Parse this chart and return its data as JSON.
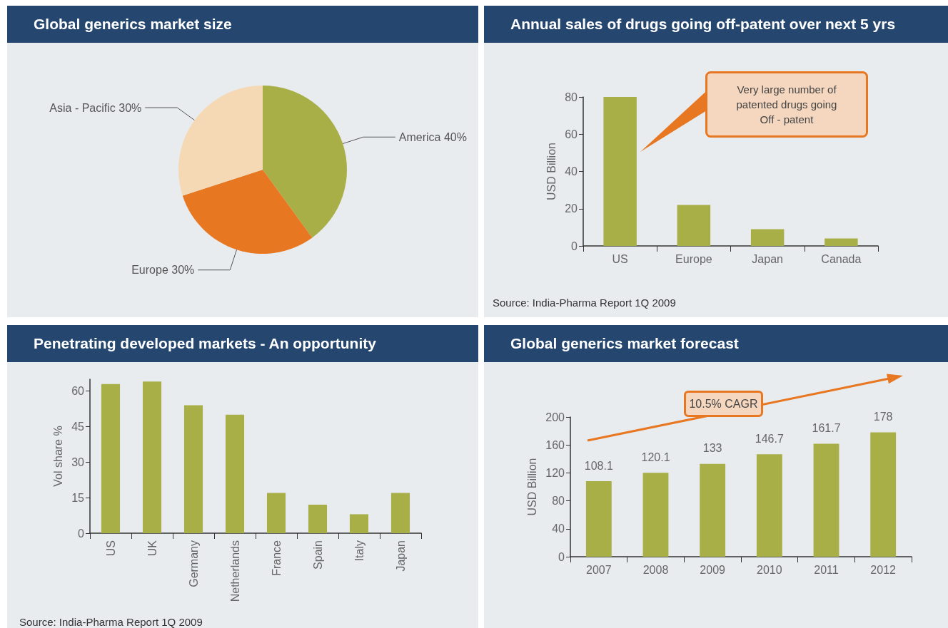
{
  "chart_data": [
    {
      "type": "pie",
      "title": "Global generics market size",
      "categories": [
        "America",
        "Europe",
        "Asia - Pacific"
      ],
      "values": [
        40,
        30,
        30
      ],
      "value_labels": [
        "40%",
        "30%",
        "30%"
      ],
      "colors": [
        "#a9af47",
        "#e87722",
        "#f5d9b5"
      ],
      "legend": false
    },
    {
      "type": "bar",
      "title": "Annual sales of drugs going off-patent over next 5 yrs",
      "ylabel": "USD Billion",
      "categories": [
        "US",
        "Europe",
        "Japan",
        "Canada"
      ],
      "values": [
        80,
        22,
        9,
        4
      ],
      "color": "#a9af47",
      "ylim": [
        0,
        80
      ],
      "yticks": [
        0,
        20,
        40,
        60,
        80
      ],
      "grid": false,
      "legend": false,
      "annotations": [
        "Very large number of patented drugs going Off - patent",
        "Source: India-Pharma Report 1Q 2009"
      ]
    },
    {
      "type": "bar",
      "title": "Penetrating developed markets - An opportunity",
      "ylabel": "Vol share %",
      "categories": [
        "US",
        "UK",
        "Germany",
        "Netherlands",
        "France",
        "Spain",
        "Italy",
        "Japan"
      ],
      "values": [
        63,
        64,
        54,
        50,
        17,
        12,
        8,
        17
      ],
      "color": "#a9af47",
      "ylim": [
        0,
        65
      ],
      "yticks": [
        0,
        15,
        30,
        45,
        60
      ],
      "grid": false,
      "legend": false,
      "annotations": [
        "Source: India-Pharma Report 1Q 2009"
      ]
    },
    {
      "type": "bar",
      "title": "Global generics market forecast",
      "ylabel": "USD Billion",
      "categories": [
        "2007",
        "2008",
        "2009",
        "2010",
        "2011",
        "2012"
      ],
      "values": [
        108.1,
        120.1,
        133,
        146.7,
        161.7,
        178
      ],
      "color": "#a9af47",
      "ylim": [
        0,
        200
      ],
      "yticks": [
        0,
        40,
        80,
        120,
        160,
        200
      ],
      "grid": false,
      "legend": false,
      "data_labels": true,
      "annotations": [
        "10.5% CAGR"
      ]
    }
  ]
}
